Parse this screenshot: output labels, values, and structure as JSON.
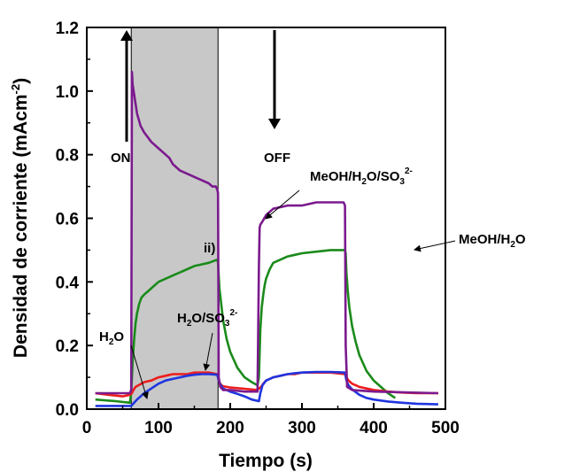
{
  "chart_data": {
    "type": "line",
    "xlabel": "Tiempo (s)",
    "ylabel": "Densidad de corriente (mAcm",
    "ylabel_sup": "-2",
    "ylabel_tail": ")",
    "xlim": [
      0,
      500
    ],
    "ylim": [
      0,
      1.2
    ],
    "x_ticks": [
      0,
      100,
      200,
      300,
      400,
      500
    ],
    "y_ticks": [
      0.0,
      0.2,
      0.4,
      0.6,
      0.8,
      1.0,
      1.2
    ],
    "x_tick_labels": [
      "0",
      "100",
      "200",
      "300",
      "400",
      "500"
    ],
    "y_tick_labels": [
      "0.0",
      "0.2",
      "0.4",
      "0.6",
      "0.8",
      "1.0",
      "1.2"
    ],
    "grid": false,
    "illuminated_region": [
      62,
      183
    ],
    "colors": {
      "methanol_sulfite": "#7b1a8e",
      "methanol_water": "#1a8a1a",
      "sulfite": "#ee1c1c",
      "water": "#1f35e0",
      "shade": "#c8c8c8"
    },
    "series": [
      {
        "key": "methanol_sulfite",
        "x": [
          12,
          60,
          62,
          63,
          64,
          68,
          70,
          75,
          80,
          90,
          100,
          110,
          115,
          120,
          130,
          140,
          150,
          160,
          170,
          175,
          180,
          182,
          183,
          184,
          186,
          190,
          200,
          220,
          238,
          240,
          241,
          242,
          245,
          250,
          260,
          280,
          300,
          320,
          340,
          358,
          360,
          361,
          363,
          370,
          400,
          490
        ],
        "y": [
          0.05,
          0.05,
          0.06,
          1.06,
          1.02,
          0.96,
          0.93,
          0.89,
          0.87,
          0.84,
          0.82,
          0.8,
          0.79,
          0.77,
          0.75,
          0.74,
          0.73,
          0.72,
          0.71,
          0.7,
          0.7,
          0.69,
          0.68,
          0.1,
          0.07,
          0.06,
          0.06,
          0.055,
          0.055,
          0.45,
          0.57,
          0.58,
          0.59,
          0.61,
          0.63,
          0.64,
          0.64,
          0.65,
          0.65,
          0.65,
          0.64,
          0.2,
          0.07,
          0.06,
          0.055,
          0.05
        ]
      },
      {
        "key": "methanol_water",
        "x": [
          12,
          40,
          60,
          62,
          64,
          66,
          68,
          70,
          73,
          76,
          80,
          85,
          90,
          100,
          110,
          120,
          130,
          140,
          150,
          160,
          170,
          182,
          183,
          185,
          190,
          195,
          200,
          210,
          220,
          230,
          238,
          240,
          242,
          244,
          246,
          248,
          250,
          255,
          260,
          270,
          280,
          290,
          300,
          320,
          340,
          360,
          361,
          362,
          364,
          366,
          370,
          375,
          380,
          390,
          400,
          410,
          420,
          430
        ],
        "y": [
          0.03,
          0.025,
          0.02,
          0.05,
          0.15,
          0.22,
          0.27,
          0.3,
          0.33,
          0.35,
          0.36,
          0.37,
          0.38,
          0.4,
          0.41,
          0.42,
          0.43,
          0.44,
          0.45,
          0.455,
          0.46,
          0.47,
          0.46,
          0.38,
          0.28,
          0.22,
          0.18,
          0.13,
          0.1,
          0.085,
          0.075,
          0.1,
          0.25,
          0.32,
          0.36,
          0.39,
          0.41,
          0.44,
          0.46,
          0.47,
          0.48,
          0.485,
          0.49,
          0.495,
          0.5,
          0.5,
          0.49,
          0.43,
          0.37,
          0.32,
          0.26,
          0.21,
          0.17,
          0.12,
          0.09,
          0.07,
          0.05,
          0.035
        ]
      },
      {
        "key": "sulfite",
        "x": [
          12,
          30,
          50,
          60,
          63,
          65,
          68,
          72,
          76,
          80,
          90,
          100,
          110,
          120,
          130,
          140,
          150,
          160,
          170,
          182,
          184,
          186,
          188,
          190,
          195,
          200,
          210,
          220,
          238,
          240,
          243,
          246,
          250,
          255,
          260,
          270,
          280,
          290,
          300,
          320,
          340,
          360,
          362,
          365,
          370,
          375,
          380,
          390,
          400,
          420,
          440,
          460,
          490
        ],
        "y": [
          0.05,
          0.045,
          0.04,
          0.045,
          0.05,
          0.06,
          0.07,
          0.075,
          0.08,
          0.085,
          0.09,
          0.1,
          0.105,
          0.11,
          0.11,
          0.11,
          0.115,
          0.115,
          0.115,
          0.11,
          0.09,
          0.08,
          0.075,
          0.072,
          0.07,
          0.068,
          0.066,
          0.064,
          0.06,
          0.065,
          0.07,
          0.08,
          0.09,
          0.095,
          0.1,
          0.105,
          0.11,
          0.11,
          0.115,
          0.115,
          0.115,
          0.11,
          0.1,
          0.09,
          0.08,
          0.075,
          0.07,
          0.065,
          0.06,
          0.055,
          0.052,
          0.05,
          0.05
        ]
      },
      {
        "key": "water",
        "x": [
          12,
          40,
          60,
          62,
          66,
          70,
          75,
          80,
          90,
          100,
          110,
          120,
          130,
          140,
          150,
          160,
          170,
          182,
          184,
          186,
          190,
          200,
          210,
          220,
          230,
          240,
          242,
          245,
          250,
          255,
          260,
          270,
          280,
          290,
          300,
          320,
          340,
          360,
          362,
          365,
          370,
          380,
          390,
          400,
          420,
          440,
          460,
          490
        ],
        "y": [
          0.01,
          0.01,
          0.01,
          0.01,
          0.02,
          0.03,
          0.04,
          0.05,
          0.065,
          0.08,
          0.09,
          0.095,
          0.1,
          0.105,
          0.108,
          0.11,
          0.11,
          0.108,
          0.09,
          0.078,
          0.065,
          0.055,
          0.048,
          0.04,
          0.03,
          0.025,
          0.05,
          0.075,
          0.09,
          0.095,
          0.1,
          0.105,
          0.11,
          0.113,
          0.115,
          0.117,
          0.117,
          0.115,
          0.09,
          0.075,
          0.062,
          0.045,
          0.035,
          0.03,
          0.024,
          0.02,
          0.017,
          0.015
        ]
      }
    ],
    "annotations": {
      "on_label": "ON",
      "off_label": "OFF",
      "ii_label": "ii)",
      "h2o_a": "H",
      "h2o_sub": "2",
      "h2o_b": "O",
      "sulfite_a": "H",
      "sulfite_sub1": "2",
      "sulfite_b": "O/SO",
      "sulfite_sub2": "3",
      "sulfite_sup": "2-",
      "ms_a": "MeOH/H",
      "ms_sub1": "2",
      "ms_b": "O/SO",
      "ms_sub2": "3",
      "ms_sup": "2-",
      "mw_a": "MeOH/H",
      "mw_sub": "2",
      "mw_b": "O"
    }
  }
}
